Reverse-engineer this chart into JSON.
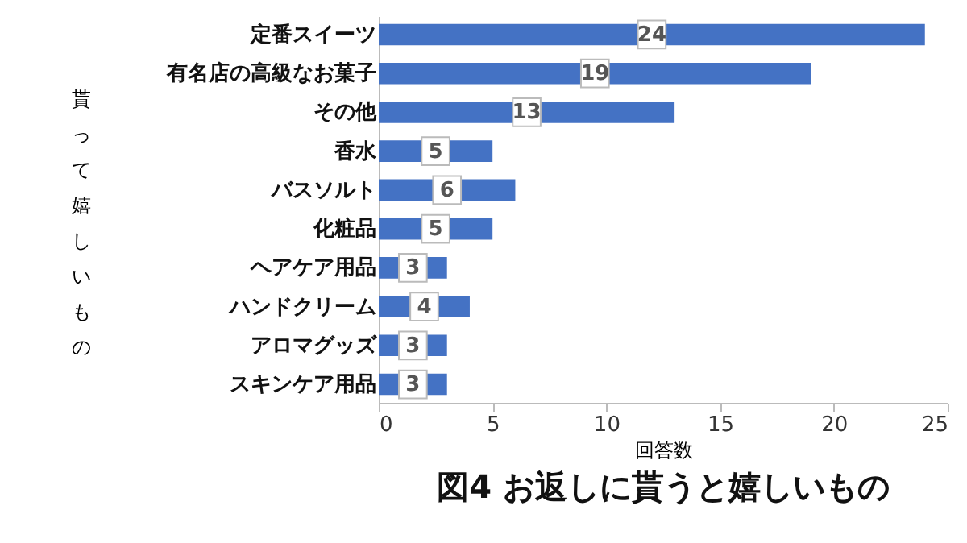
{
  "chart_data": {
    "type": "bar",
    "orientation": "horizontal",
    "title": "図4 お返しに貰うと嬉しいもの",
    "xlabel": "回答数",
    "ylabel": "貰って嬉しいもの",
    "categories": [
      "定番スイーツ",
      "有名店の高級なお菓子",
      "その他",
      "香水",
      "バスソルト",
      "化粧品",
      "ヘアケア用品",
      "ハンドクリーム",
      "アロマグッズ",
      "スキンケア用品"
    ],
    "values": [
      24,
      19,
      13,
      5,
      6,
      5,
      3,
      4,
      3,
      3
    ],
    "color": "#4472c4",
    "xlim": [
      0,
      25
    ],
    "xticks": [
      0,
      5,
      10,
      15,
      20,
      25
    ],
    "data_labels": true,
    "grid": false
  }
}
